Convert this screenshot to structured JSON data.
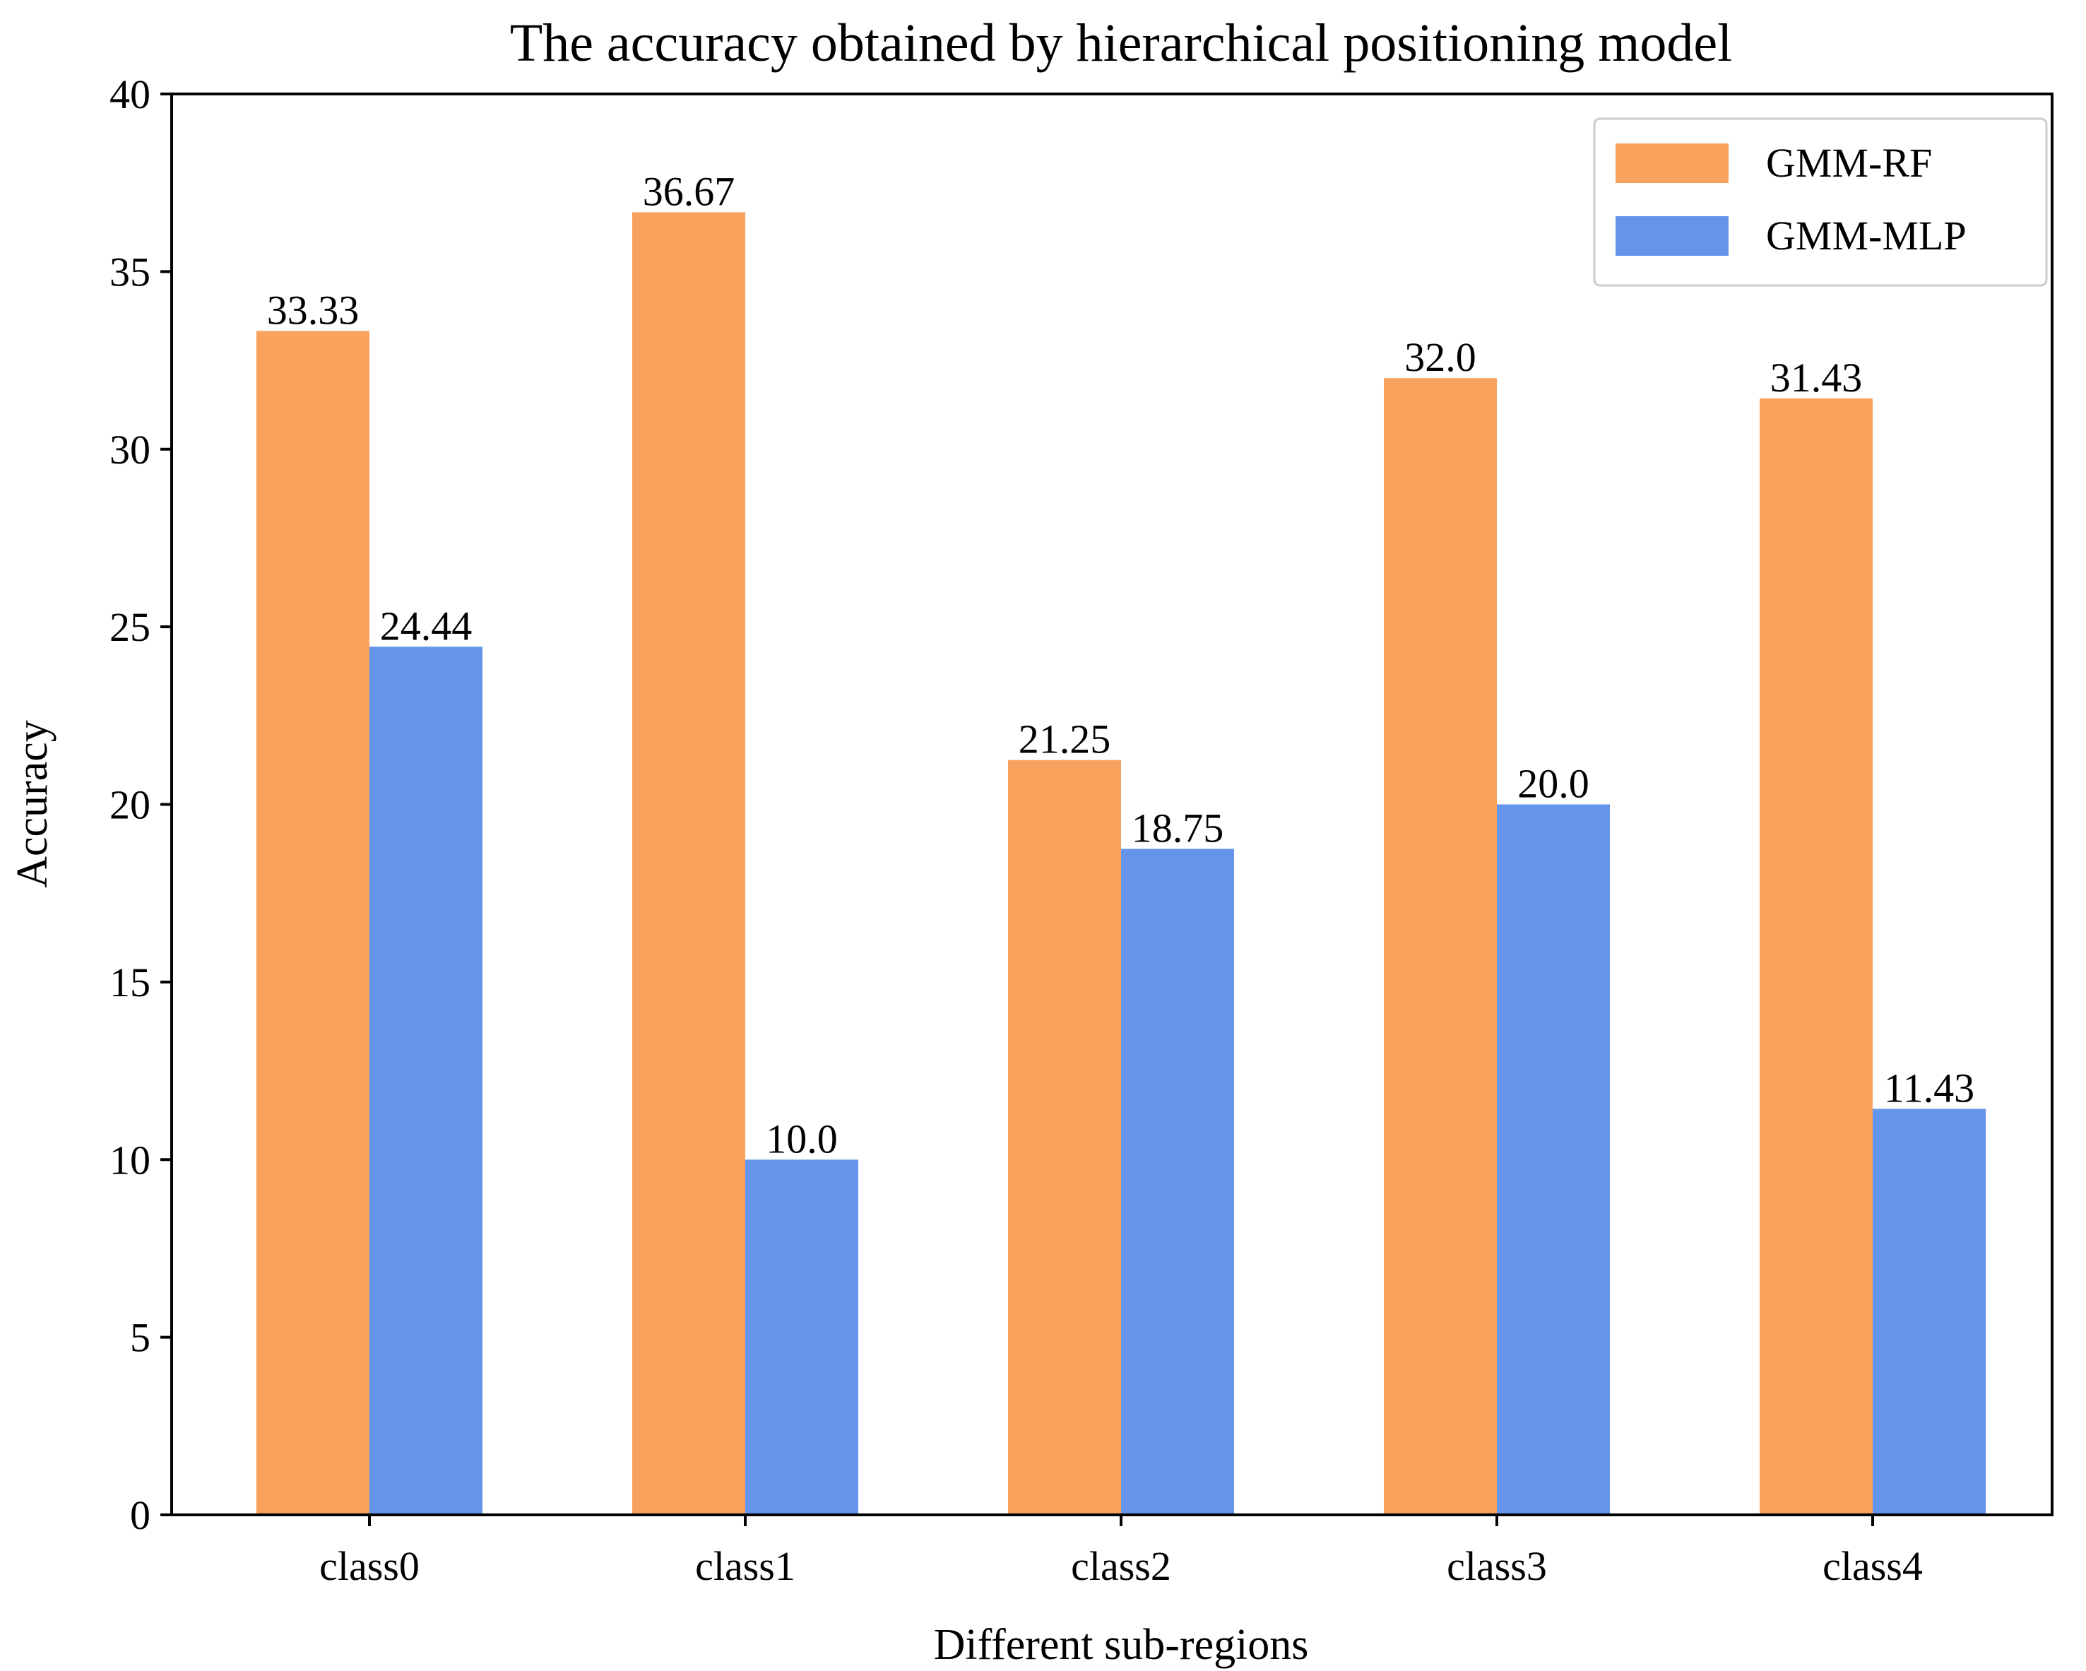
{
  "chart_data": {
    "type": "bar",
    "title": "The accuracy obtained by hierarchical positioning model",
    "xlabel": "Different sub-regions",
    "ylabel": "Accuracy",
    "categories": [
      "class0",
      "class1",
      "class2",
      "class3",
      "class4"
    ],
    "series": [
      {
        "name": "GMM-RF",
        "color": "#F8A25E",
        "values": [
          33.33,
          36.67,
          21.25,
          32.0,
          31.43
        ],
        "labels": [
          "33.33",
          "36.67",
          "21.25",
          "32.0",
          "31.43"
        ]
      },
      {
        "name": "GMM-MLP",
        "color": "#6495EA",
        "values": [
          24.44,
          10.0,
          18.75,
          20.0,
          11.43
        ],
        "labels": [
          "24.44",
          "10.0",
          "18.75",
          "20.0",
          "11.43"
        ]
      }
    ],
    "ylim": [
      0,
      40
    ],
    "yticks": [
      0,
      5,
      10,
      15,
      20,
      25,
      30,
      35,
      40
    ],
    "grid": false,
    "legend_position": "top-right"
  }
}
